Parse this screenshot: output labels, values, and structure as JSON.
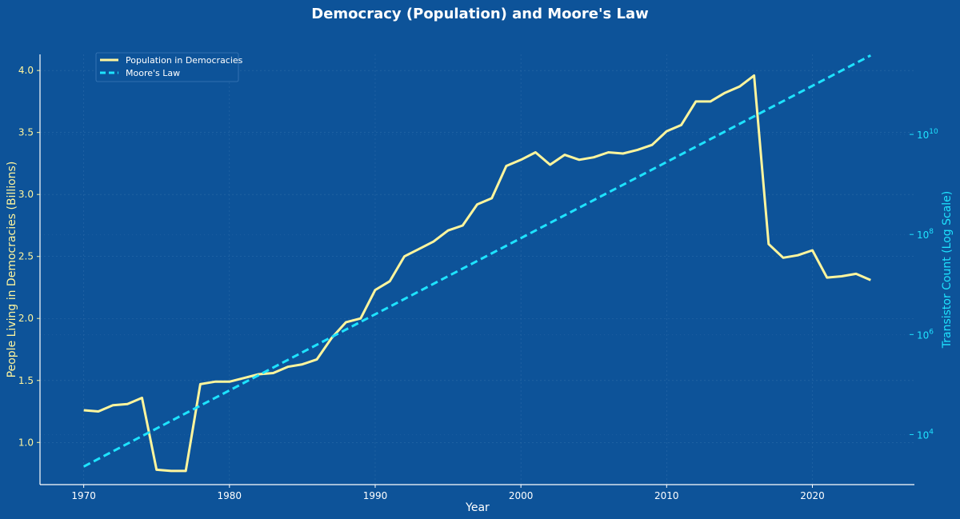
{
  "chart_data": {
    "type": "line",
    "title": "Democracy (Population) and Moore's Law",
    "xlabel": "Year",
    "ylabel_left": "People Living in Democracies (Billions)",
    "ylabel_right": "Transistor Count (Log Scale)",
    "xlim": [
      1967,
      2027
    ],
    "ylim_left": [
      0.66,
      4.13
    ],
    "ylim_right_log10": [
      3.0,
      11.6
    ],
    "right_axis_scale": "log",
    "x_ticks": [
      1970,
      1980,
      1990,
      2000,
      2010,
      2020
    ],
    "y_ticks_left": [
      1.0,
      1.5,
      2.0,
      2.5,
      3.0,
      3.5,
      4.0
    ],
    "y_ticks_right": [
      {
        "base": "10",
        "exp": "4",
        "log10": 4
      },
      {
        "base": "10",
        "exp": "6",
        "log10": 6
      },
      {
        "base": "10",
        "exp": "8",
        "log10": 8
      },
      {
        "base": "10",
        "exp": "10",
        "log10": 10
      }
    ],
    "grid": true,
    "legend_position": "top-left",
    "series": [
      {
        "name": "Population in Democracies",
        "axis": "left",
        "style": "solid",
        "color": "#fff59d",
        "x": [
          1970,
          1971,
          1972,
          1973,
          1974,
          1975,
          1976,
          1977,
          1978,
          1979,
          1980,
          1981,
          1982,
          1983,
          1984,
          1985,
          1986,
          1987,
          1988,
          1989,
          1990,
          1991,
          1992,
          1993,
          1994,
          1995,
          1996,
          1997,
          1998,
          1999,
          2000,
          2001,
          2002,
          2003,
          2004,
          2005,
          2006,
          2007,
          2008,
          2009,
          2010,
          2011,
          2012,
          2013,
          2014,
          2015,
          2016,
          2017,
          2018,
          2019,
          2020,
          2021,
          2022,
          2023,
          2024
        ],
        "y": [
          1.26,
          1.25,
          1.3,
          1.31,
          1.36,
          0.78,
          0.77,
          0.77,
          1.47,
          1.49,
          1.49,
          1.52,
          1.55,
          1.56,
          1.61,
          1.63,
          1.67,
          1.84,
          1.97,
          2.0,
          2.23,
          2.3,
          2.5,
          2.56,
          2.62,
          2.71,
          2.75,
          2.92,
          2.97,
          3.23,
          3.28,
          3.34,
          3.24,
          3.32,
          3.28,
          3.3,
          3.34,
          3.33,
          3.36,
          3.4,
          3.51,
          3.56,
          3.75,
          3.75,
          3.82,
          3.87,
          3.96,
          2.6,
          2.49,
          2.51,
          2.55,
          2.33,
          2.34,
          2.36,
          2.31
        ]
      },
      {
        "name": "Moore's Law",
        "axis": "right",
        "style": "dashed",
        "color": "#1ee3ff",
        "x": [
          1970,
          2024
        ],
        "y": [
          2300,
          380000000000.0
        ]
      }
    ]
  },
  "colors": {
    "background": "#0d5399",
    "axis_left": "#fff59d",
    "axis_right": "#1ee3ff",
    "text": "#ffffff"
  }
}
